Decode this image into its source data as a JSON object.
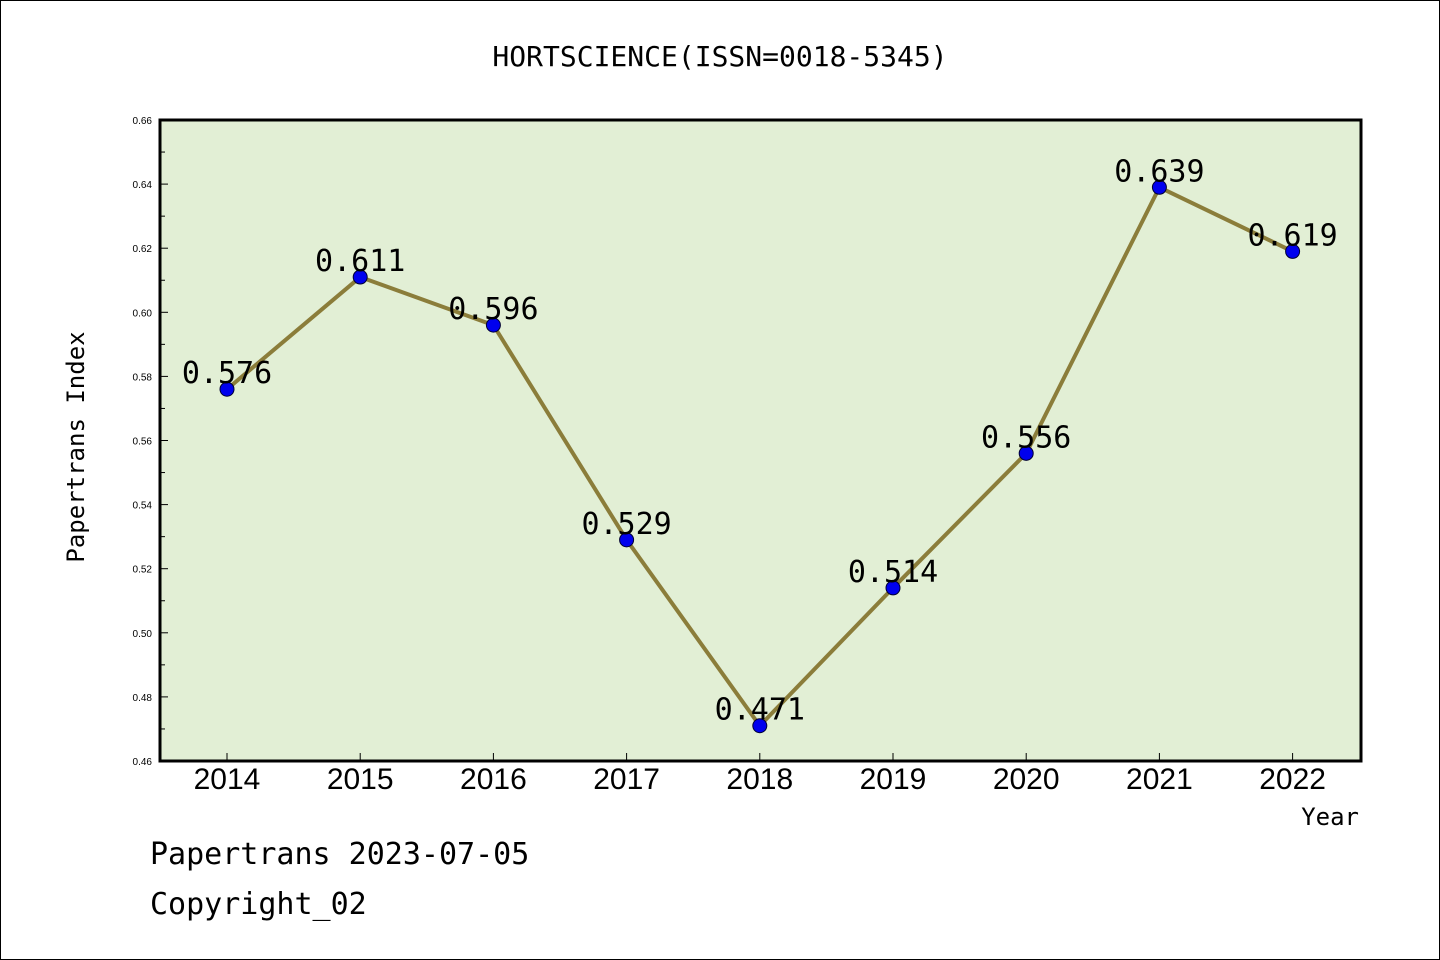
{
  "chart_data": {
    "type": "line",
    "title": "HORTSCIENCE(ISSN=0018-5345)",
    "xlabel": "Year",
    "ylabel": "Papertrans Index",
    "categories": [
      "2014",
      "2015",
      "2016",
      "2017",
      "2018",
      "2019",
      "2020",
      "2021",
      "2022"
    ],
    "values": [
      0.576,
      0.611,
      0.596,
      0.529,
      0.471,
      0.514,
      0.556,
      0.639,
      0.619
    ],
    "data_labels": [
      "0.576",
      "0.611",
      "0.596",
      "0.529",
      "0.471",
      "0.514",
      "0.556",
      "0.639",
      "0.619"
    ],
    "ylim": [
      0.46,
      0.66
    ],
    "yticks": [
      "0.46",
      "0.48",
      "0.50",
      "0.52",
      "0.54",
      "0.56",
      "0.58",
      "0.60",
      "0.62",
      "0.64",
      "0.66"
    ],
    "grid": false,
    "legend": "none",
    "colors": {
      "plot_background": "#e2efd5",
      "line": "#8b7d3a",
      "marker": "#0000ee"
    }
  },
  "footer": {
    "line1": "Papertrans 2023-07-05",
    "line2": "Copyright_02"
  }
}
